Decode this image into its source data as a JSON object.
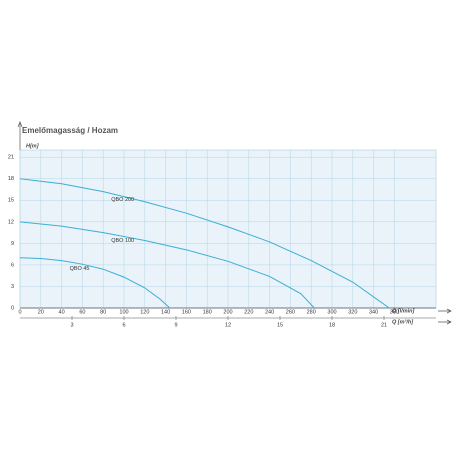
{
  "chart_data": {
    "type": "line",
    "title": "Emelőmagasság / Hozam",
    "ylabel": "H[m]",
    "xlabel": "Q [l/min]",
    "x2label": "Q [m³/h]",
    "xlim": [
      0,
      400
    ],
    "xticks": [
      0,
      20,
      40,
      60,
      80,
      100,
      120,
      140,
      160,
      180,
      200,
      220,
      240,
      260,
      280,
      300,
      320,
      340,
      360
    ],
    "x2lim": [
      0,
      24
    ],
    "x2ticks": [
      3,
      6,
      9,
      12,
      15,
      18,
      21
    ],
    "ylim": [
      0,
      22
    ],
    "yticks": [
      0,
      3,
      6,
      9,
      12,
      15,
      18,
      21
    ],
    "grid": true,
    "series": [
      {
        "name": "QBO 200",
        "color": "#3aaed6",
        "x": [
          0,
          40,
          80,
          120,
          160,
          200,
          240,
          280,
          320,
          355
        ],
        "values": [
          18,
          17.3,
          16.2,
          14.8,
          13.2,
          11.3,
          9.2,
          6.6,
          3.6,
          0
        ]
      },
      {
        "name": "QBO 100",
        "color": "#3aaed6",
        "x": [
          0,
          40,
          80,
          120,
          160,
          200,
          240,
          270,
          283
        ],
        "values": [
          12,
          11.4,
          10.5,
          9.4,
          8.1,
          6.5,
          4.4,
          2,
          0
        ]
      },
      {
        "name": "QBO 45",
        "color": "#3aaed6",
        "x": [
          0,
          20,
          40,
          60,
          80,
          100,
          120,
          135,
          144
        ],
        "values": [
          7,
          6.9,
          6.6,
          6.1,
          5.4,
          4.3,
          2.8,
          1.2,
          0
        ]
      }
    ]
  }
}
